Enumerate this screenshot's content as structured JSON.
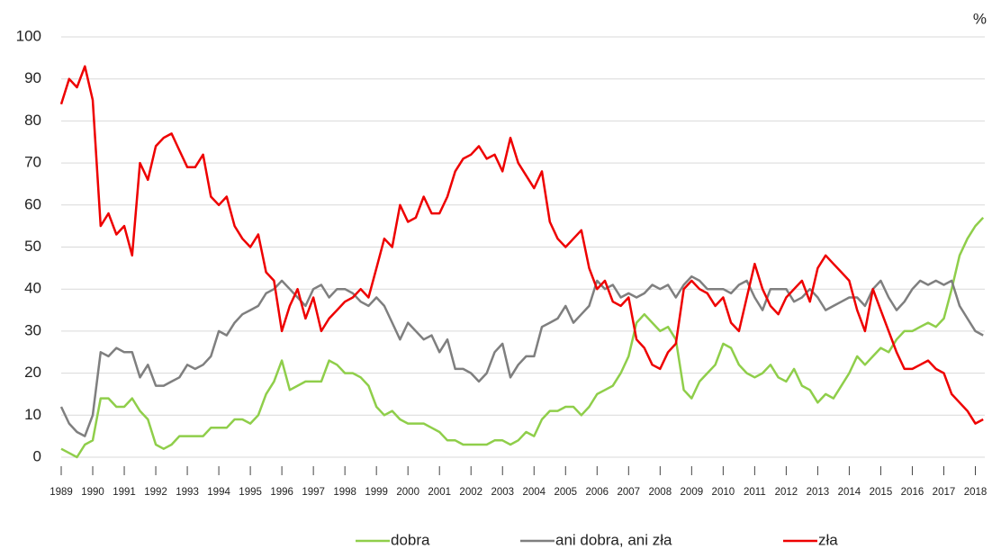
{
  "chart_data": {
    "type": "line",
    "unit_label": "%",
    "x": [
      1989,
      1989.25,
      1989.5,
      1989.75,
      1990,
      1990.25,
      1990.5,
      1990.75,
      1991,
      1991.25,
      1991.5,
      1991.75,
      1992,
      1992.25,
      1992.5,
      1992.75,
      1993,
      1993.25,
      1993.5,
      1993.75,
      1994,
      1994.25,
      1994.5,
      1994.75,
      1995,
      1995.25,
      1995.5,
      1995.75,
      1996,
      1996.25,
      1996.5,
      1996.75,
      1997,
      1997.25,
      1997.5,
      1997.75,
      1998,
      1998.25,
      1998.5,
      1998.75,
      1999,
      1999.25,
      1999.5,
      1999.75,
      2000,
      2000.25,
      2000.5,
      2000.75,
      2001,
      2001.25,
      2001.5,
      2001.75,
      2002,
      2002.25,
      2002.5,
      2002.75,
      2003,
      2003.25,
      2003.5,
      2003.75,
      2004,
      2004.25,
      2004.5,
      2004.75,
      2005,
      2005.25,
      2005.5,
      2005.75,
      2006,
      2006.25,
      2006.5,
      2006.75,
      2007,
      2007.25,
      2007.5,
      2007.75,
      2008,
      2008.25,
      2008.5,
      2008.75,
      2009,
      2009.25,
      2009.5,
      2009.75,
      2010,
      2010.25,
      2010.5,
      2010.75,
      2011,
      2011.25,
      2011.5,
      2011.75,
      2012,
      2012.25,
      2012.5,
      2012.75,
      2013,
      2013.25,
      2013.5,
      2013.75,
      2014,
      2014.25,
      2014.5,
      2014.75,
      2015,
      2015.25,
      2015.5,
      2015.75,
      2016,
      2016.25,
      2016.5,
      2016.75,
      2017,
      2017.25,
      2017.5,
      2017.75,
      2018,
      2018.25
    ],
    "series": [
      {
        "name": "dobra",
        "color": "#8fce4a",
        "values": [
          2,
          1,
          0,
          3,
          4,
          14,
          14,
          12,
          12,
          14,
          11,
          9,
          3,
          2,
          3,
          5,
          5,
          5,
          5,
          7,
          7,
          7,
          9,
          9,
          8,
          10,
          15,
          18,
          23,
          16,
          17,
          18,
          18,
          18,
          23,
          22,
          20,
          20,
          19,
          17,
          12,
          10,
          11,
          9,
          8,
          8,
          8,
          7,
          6,
          4,
          4,
          3,
          3,
          3,
          3,
          4,
          4,
          3,
          4,
          6,
          5,
          9,
          11,
          11,
          12,
          12,
          10,
          12,
          15,
          16,
          17,
          20,
          24,
          32,
          34,
          32,
          30,
          31,
          28,
          16,
          14,
          18,
          20,
          22,
          27,
          26,
          22,
          20,
          19,
          20,
          22,
          19,
          18,
          21,
          17,
          16,
          13,
          15,
          14,
          17,
          20,
          24,
          22,
          24,
          26,
          25,
          28,
          30,
          30,
          31,
          32,
          31,
          33,
          40,
          48,
          52,
          55,
          57
        ]
      },
      {
        "name": "ani dobra, ani zła",
        "color": "#7f7f7f",
        "values": [
          12,
          8,
          6,
          5,
          10,
          25,
          24,
          26,
          25,
          25,
          19,
          22,
          17,
          17,
          18,
          19,
          22,
          21,
          22,
          24,
          30,
          29,
          32,
          34,
          35,
          36,
          39,
          40,
          42,
          40,
          38,
          36,
          40,
          41,
          38,
          40,
          40,
          39,
          37,
          36,
          38,
          36,
          32,
          28,
          32,
          30,
          28,
          29,
          25,
          28,
          21,
          21,
          20,
          18,
          20,
          25,
          27,
          19,
          22,
          24,
          24,
          31,
          32,
          33,
          36,
          32,
          34,
          36,
          42,
          40,
          41,
          38,
          39,
          38,
          39,
          41,
          40,
          41,
          38,
          41,
          43,
          42,
          40,
          40,
          40,
          39,
          41,
          42,
          38,
          35,
          40,
          40,
          40,
          37,
          38,
          40,
          38,
          35,
          36,
          37,
          38,
          38,
          36,
          40,
          42,
          38,
          35,
          37,
          40,
          42,
          41,
          42,
          41,
          42,
          36,
          33,
          30,
          29
        ]
      },
      {
        "name": "zła",
        "color": "#ee0000",
        "values": [
          84,
          90,
          88,
          93,
          85,
          55,
          58,
          53,
          55,
          48,
          70,
          66,
          74,
          76,
          77,
          73,
          69,
          69,
          72,
          62,
          60,
          62,
          55,
          52,
          50,
          53,
          44,
          42,
          30,
          36,
          40,
          33,
          38,
          30,
          33,
          35,
          37,
          38,
          40,
          38,
          45,
          52,
          50,
          60,
          56,
          57,
          62,
          58,
          58,
          62,
          68,
          71,
          72,
          74,
          71,
          72,
          68,
          76,
          70,
          67,
          64,
          68,
          56,
          52,
          50,
          52,
          54,
          45,
          40,
          42,
          37,
          36,
          38,
          28,
          26,
          22,
          21,
          25,
          27,
          40,
          42,
          40,
          39,
          36,
          38,
          32,
          30,
          38,
          46,
          40,
          36,
          34,
          38,
          40,
          42,
          37,
          45,
          48,
          46,
          44,
          42,
          35,
          30,
          40,
          35,
          30,
          25,
          21,
          21,
          22,
          23,
          21,
          20,
          15,
          13,
          11,
          8,
          9
        ]
      }
    ],
    "xlim": [
      1989,
      2018.3
    ],
    "xticks": [
      1989,
      1990,
      1991,
      1992,
      1993,
      1994,
      1995,
      1996,
      1997,
      1998,
      1999,
      2000,
      2001,
      2002,
      2003,
      2004,
      2005,
      2006,
      2007,
      2008,
      2009,
      2010,
      2011,
      2012,
      2013,
      2014,
      2015,
      2016,
      2017,
      2018
    ],
    "ylim": [
      0,
      100
    ],
    "yticks": [
      0,
      10,
      20,
      30,
      40,
      50,
      60,
      70,
      80,
      90,
      100
    ],
    "grid": true,
    "legend": "bottom"
  }
}
